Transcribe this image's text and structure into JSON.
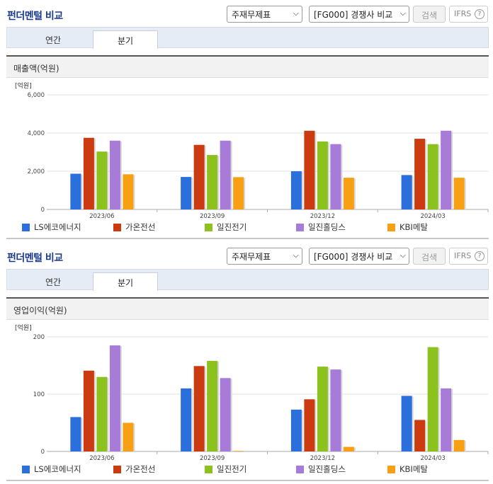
{
  "sections": [
    {
      "header": {
        "title": "펀더멘털 비교",
        "report_select": "주재무제표",
        "compare_select": "[FG000] 경쟁사 비교",
        "search_label": "검색",
        "ifrs_label": "IFRS"
      },
      "tabs": [
        {
          "label": "연간",
          "active": false
        },
        {
          "label": "분기",
          "active": true
        }
      ],
      "chart_title": "매출액(억원)",
      "chart_data": {
        "type": "bar",
        "title": "매출액(억원)",
        "unit": "[억원]",
        "categories": [
          "2023/06",
          "2023/09",
          "2023/12",
          "2024/03"
        ],
        "ylim": [
          0,
          6000
        ],
        "yticks": [
          "6,000",
          "4,000",
          "2,000",
          "0"
        ],
        "ytick_values": [
          6000,
          4000,
          2000,
          0
        ],
        "series": [
          {
            "name": "LS에코에너지",
            "color": "#2a6fdb",
            "values": [
              1870,
              1700,
              2000,
              1800
            ]
          },
          {
            "name": "가온전선",
            "color": "#cc3a10",
            "values": [
              3750,
              3380,
              4120,
              3700
            ]
          },
          {
            "name": "일진전기",
            "color": "#8cc21e",
            "values": [
              3030,
              2850,
              3560,
              3420
            ]
          },
          {
            "name": "일진홀딩스",
            "color": "#a77bd8",
            "values": [
              3600,
              3600,
              3420,
              4120
            ]
          },
          {
            "name": "KBI메탈",
            "color": "#f7a014",
            "values": [
              1840,
              1690,
              1660,
              1660
            ]
          }
        ]
      }
    },
    {
      "header": {
        "title": "펀더멘털 비교",
        "report_select": "주재무제표",
        "compare_select": "[FG000] 경쟁사 비교",
        "search_label": "검색",
        "ifrs_label": "IFRS"
      },
      "tabs": [
        {
          "label": "연간",
          "active": false
        },
        {
          "label": "분기",
          "active": true
        }
      ],
      "chart_title": "영업이익(억원)",
      "chart_data": {
        "type": "bar",
        "title": "영업이익(억원)",
        "unit": "[억원]",
        "categories": [
          "2023/06",
          "2023/09",
          "2023/12",
          "2024/03"
        ],
        "ylim": [
          0,
          200
        ],
        "yticks": [
          "200",
          "100",
          "0"
        ],
        "ytick_values": [
          200,
          100,
          0
        ],
        "series": [
          {
            "name": "LS에코에너지",
            "color": "#2a6fdb",
            "values": [
              60,
              110,
              73,
              97
            ]
          },
          {
            "name": "가온전선",
            "color": "#cc3a10",
            "values": [
              141,
              149,
              91,
              55
            ]
          },
          {
            "name": "일진전기",
            "color": "#8cc21e",
            "values": [
              130,
              158,
              148,
              182
            ]
          },
          {
            "name": "일진홀딩스",
            "color": "#a77bd8",
            "values": [
              185,
              128,
              143,
              110
            ]
          },
          {
            "name": "KBI메탈",
            "color": "#f7a014",
            "values": [
              50,
              1,
              8,
              20
            ]
          }
        ]
      }
    }
  ]
}
